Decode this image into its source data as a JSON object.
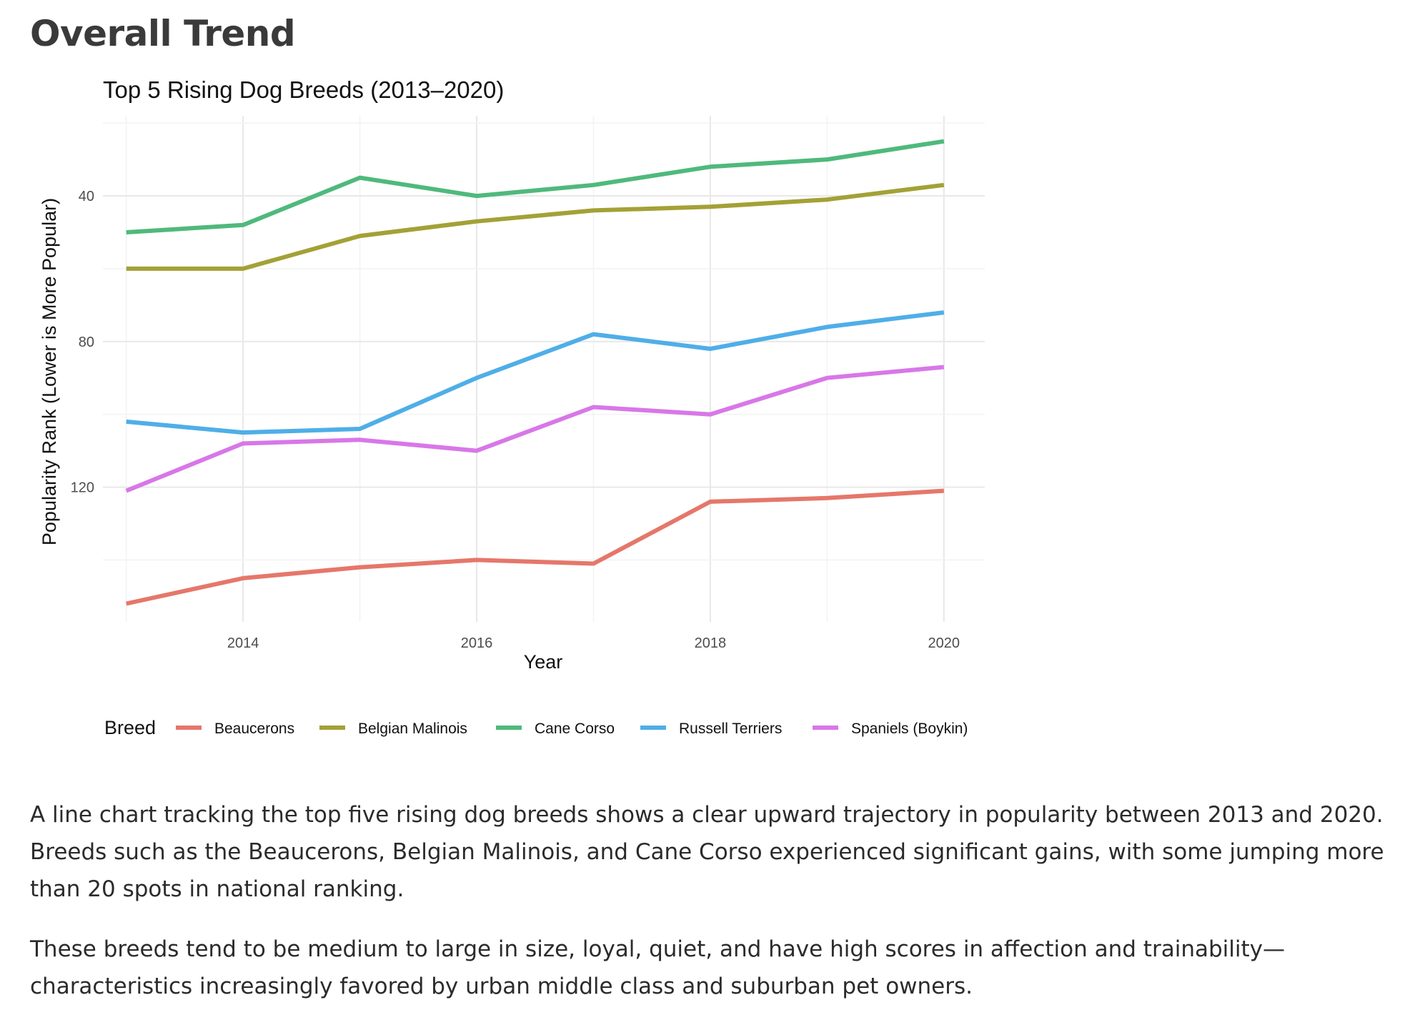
{
  "section": {
    "heading": "Overall Trend"
  },
  "chart_data": {
    "type": "line",
    "title": "Top 5 Rising Dog Breeds (2013–2020)",
    "xlabel": "Year",
    "ylabel": "Popularity Rank (Lower is More Popular)",
    "x": [
      2013,
      2014,
      2015,
      2016,
      2017,
      2018,
      2019,
      2020
    ],
    "x_ticks": [
      2014,
      2016,
      2018,
      2020
    ],
    "x_tick_labels": [
      "2014",
      "2016",
      "2018",
      "2020"
    ],
    "xlim": [
      2012.8,
      2020.35
    ],
    "y_ticks": [
      40,
      80,
      120
    ],
    "y_tick_labels": [
      "40",
      "80",
      "120"
    ],
    "y_minor_ticks": [
      20,
      60,
      100,
      140
    ],
    "ylim": [
      18,
      157
    ],
    "y_reversed": true,
    "grid": true,
    "legend_title": "Breed",
    "legend_position": "bottom",
    "series": [
      {
        "name": "Beaucerons",
        "color": "#E5776A",
        "values": [
          152,
          145,
          142,
          140,
          141,
          124,
          123,
          121
        ]
      },
      {
        "name": "Belgian Malinois",
        "color": "#A3A136",
        "values": [
          60,
          60,
          51,
          47,
          44,
          43,
          41,
          37
        ]
      },
      {
        "name": "Cane Corso",
        "color": "#4FB97C",
        "values": [
          50,
          48,
          35,
          40,
          37,
          32,
          30,
          25
        ]
      },
      {
        "name": "Russell Terriers",
        "color": "#4FAEE8",
        "values": [
          102,
          105,
          104,
          90,
          78,
          82,
          76,
          72
        ]
      },
      {
        "name": "Spaniels (Boykin)",
        "color": "#D877E8",
        "values": [
          121,
          108,
          107,
          110,
          98,
          100,
          90,
          87
        ]
      }
    ]
  },
  "text": {
    "paragraph1": "A line chart tracking the top five rising dog breeds shows a clear upward trajectory in popularity between 2013 and 2020. Breeds such as the Beaucerons, Belgian Malinois, and Cane Corso experienced significant gains, with some jumping more than 20 spots in national ranking.",
    "paragraph2": "These breeds tend to be medium to large in size, loyal, quiet, and have high scores in affection and trainability—characteristics increasingly favored by urban middle class and suburban pet owners."
  }
}
